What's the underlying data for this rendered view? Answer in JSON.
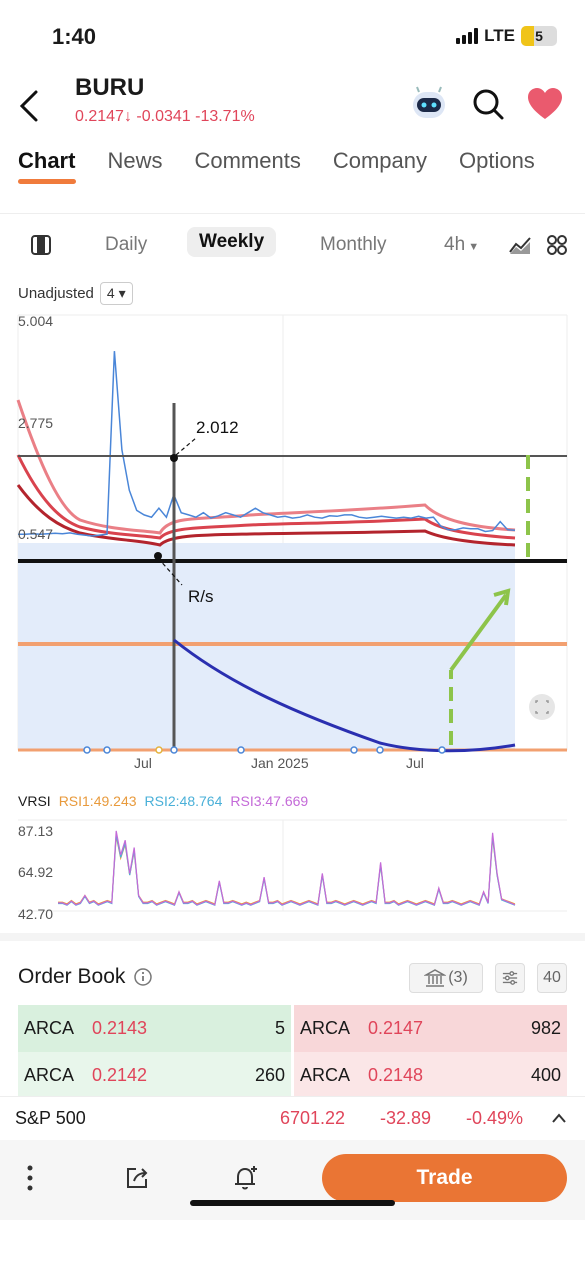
{
  "status": {
    "time": "1:40",
    "network": "LTE",
    "battery": "5"
  },
  "header": {
    "ticker": "BURU",
    "price": "0.2147",
    "change": "-0.0341",
    "change_pct": "-13.71%"
  },
  "tabs": [
    "Chart",
    "News",
    "Comments",
    "Company",
    "Options"
  ],
  "periods": {
    "daily": "Daily",
    "weekly": "Weekly",
    "monthly": "Monthly",
    "intraday": "4h"
  },
  "chart_controls": {
    "adjust": "Unadjusted",
    "ma": "4"
  },
  "chart_data": {
    "type": "line",
    "y_ticks": [
      "5.004",
      "2.775",
      "0.547"
    ],
    "x_ticks": [
      "Jul",
      "Jan 2025",
      "Jul"
    ],
    "annotations": [
      "2.012",
      "R/s"
    ],
    "price_series": [
      0.52,
      0.52,
      0.53,
      0.52,
      0.53,
      0.54,
      0.53,
      0.55,
      0.52,
      0.5,
      0.48,
      0.5,
      0.52,
      4.6,
      2.4,
      1.5,
      1.05,
      0.95,
      0.9,
      1.1,
      0.9,
      1.4,
      1.0,
      0.95,
      0.9,
      1.0,
      0.88,
      0.93,
      1.0,
      0.95,
      0.9,
      1.0,
      1.1,
      1.0,
      0.95,
      0.9,
      0.92,
      0.88,
      0.9,
      0.95,
      0.9,
      0.88,
      0.93,
      0.92,
      0.95,
      0.95,
      0.9,
      0.88,
      0.9,
      0.92,
      0.9,
      0.88,
      0.9,
      0.88,
      0.92,
      0.88,
      0.9,
      0.7,
      0.62,
      0.62,
      0.66,
      0.64,
      0.64,
      0.58,
      0.6,
      0.8,
      0.62,
      0.61
    ]
  },
  "rsi": {
    "label": "VRSI",
    "rsi1": "RSI1:49.243",
    "rsi2": "RSI2:48.764",
    "rsi3": "RSI3:47.669",
    "y_ticks": [
      "87.13",
      "64.92",
      "42.70"
    ],
    "series": [
      46,
      46,
      45,
      47,
      45,
      46,
      50,
      46,
      47,
      45,
      46,
      47,
      46,
      85,
      72,
      80,
      62,
      76,
      50,
      46,
      46,
      47,
      45,
      46,
      47,
      46,
      45,
      52,
      46,
      46,
      47,
      45,
      46,
      47,
      46,
      45,
      58,
      46,
      46,
      47,
      46,
      45,
      46,
      45,
      46,
      47,
      60,
      46,
      46,
      47,
      45,
      46,
      47,
      46,
      45,
      46,
      47,
      46,
      45,
      62,
      46,
      46,
      47,
      46,
      45,
      46,
      47,
      46,
      45,
      46,
      47,
      46,
      68,
      46,
      46,
      47,
      45,
      46,
      47,
      46,
      45,
      46,
      47,
      46,
      45,
      54,
      46,
      46,
      47,
      46,
      45,
      46,
      47,
      46,
      45,
      52,
      46,
      84,
      62,
      48,
      47,
      46,
      45
    ]
  },
  "order_book": {
    "title": "Order Book",
    "bank_count": "(3)",
    "depth": "40",
    "rows": [
      {
        "bid_ex": "ARCA",
        "bid_price": "0.2143",
        "bid_size": "5",
        "ask_ex": "ARCA",
        "ask_price": "0.2147",
        "ask_size": "982"
      },
      {
        "bid_ex": "ARCA",
        "bid_price": "0.2142",
        "bid_size": "260",
        "ask_ex": "ARCA",
        "ask_price": "0.2148",
        "ask_size": "400"
      }
    ]
  },
  "index": {
    "name": "S&P 500",
    "value": "6701.22",
    "change": "-32.89",
    "change_pct": "-0.49%"
  },
  "bottom": {
    "trade_label": "Trade"
  },
  "colors": {
    "accent": "#ea7534",
    "down": "#e0455a"
  }
}
